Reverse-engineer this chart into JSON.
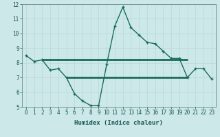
{
  "title": "",
  "xlabel": "Humidex (Indice chaleur)",
  "bg_color": "#cce8e8",
  "line_color": "#1a6b5a",
  "grid_color": "#b8d8d8",
  "x_data": [
    0,
    1,
    2,
    3,
    4,
    5,
    6,
    7,
    8,
    9,
    10,
    11,
    12,
    13,
    14,
    15,
    16,
    17,
    18,
    19,
    20,
    21,
    22,
    23
  ],
  "y_data": [
    8.5,
    8.1,
    8.2,
    7.5,
    7.6,
    7.0,
    5.9,
    5.4,
    5.1,
    5.1,
    7.9,
    10.5,
    11.8,
    10.4,
    9.9,
    9.4,
    9.3,
    8.8,
    8.3,
    8.3,
    7.0,
    7.6,
    7.6,
    6.9
  ],
  "hline1_xstart": 2,
  "hline1_xend": 20,
  "hline1_y": 8.2,
  "hline2_xstart": 5,
  "hline2_xend": 20,
  "hline2_y": 7.0,
  "xlim": [
    -0.5,
    23.5
  ],
  "ylim": [
    5,
    12
  ],
  "yticks": [
    5,
    6,
    7,
    8,
    9,
    10,
    11,
    12
  ],
  "xticks": [
    0,
    1,
    2,
    3,
    4,
    5,
    6,
    7,
    8,
    9,
    10,
    11,
    12,
    13,
    14,
    15,
    16,
    17,
    18,
    19,
    20,
    21,
    22,
    23
  ],
  "xtick_labels": [
    "0",
    "1",
    "2",
    "3",
    "4",
    "5",
    "6",
    "7",
    "8",
    "9",
    "10",
    "11",
    "12",
    "13",
    "14",
    "15",
    "16",
    "17",
    "18",
    "19",
    "20",
    "21",
    "22",
    "23"
  ],
  "tick_fontsize": 5.5,
  "xlabel_fontsize": 6.5,
  "tick_color": "#1a5555"
}
